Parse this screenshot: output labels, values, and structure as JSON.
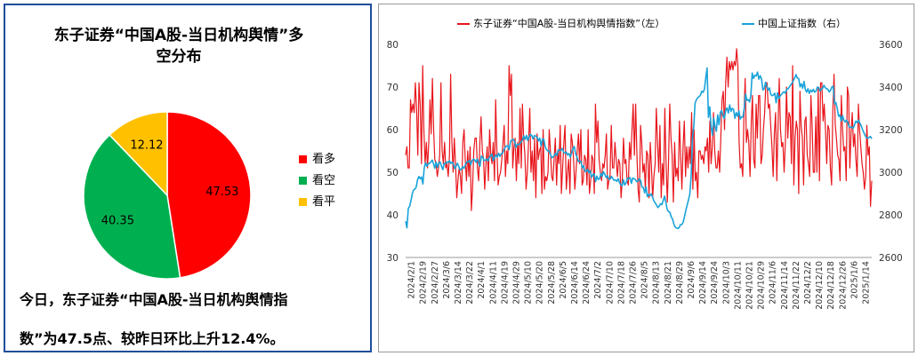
{
  "pie_panel": {
    "title_line1": "东子证券“中国A股-当日机构舆情”多",
    "title_line2": "空分布",
    "caption_line1": "今日，东子证券“中国A股-当日机构舆情指",
    "caption_line2": "数”为47.5点、较昨日环比上升12.4%。"
  },
  "chart_data": [
    {
      "type": "pie",
      "title": "东子证券“中国A股-当日机构舆情”多空分布",
      "slices": [
        {
          "label": "看多",
          "value": 47.53,
          "color": "#ff0000"
        },
        {
          "label": "看空",
          "value": 40.35,
          "color": "#00b050"
        },
        {
          "label": "看平",
          "value": 12.12,
          "color": "#ffc000"
        }
      ],
      "legend_position": "right"
    },
    {
      "type": "line",
      "series": [
        {
          "name": "东子证券“中国A股-当日机构舆情指数”（左）",
          "axis": "left",
          "color": "#e8161c",
          "values": [
            54,
            56,
            51,
            51,
            67,
            64,
            66,
            64,
            71,
            65,
            54,
            71,
            66,
            52,
            75,
            60,
            52,
            57,
            51,
            57,
            67,
            59,
            72,
            60,
            53,
            52,
            49,
            51,
            54,
            71,
            55,
            52,
            57,
            51,
            52,
            49,
            54,
            73,
            57,
            50,
            58,
            52,
            44,
            48,
            51,
            49,
            45,
            57,
            60,
            53,
            48,
            55,
            49,
            56,
            41,
            46,
            55,
            58,
            58,
            51,
            48,
            57,
            63,
            55,
            53,
            46,
            52,
            56,
            48,
            60,
            54,
            52,
            57,
            48,
            67,
            55,
            47,
            49,
            50,
            53,
            57,
            61,
            49,
            55,
            52,
            75,
            68,
            73,
            51,
            56,
            58,
            48,
            57,
            52,
            65,
            51,
            66,
            58,
            54,
            46,
            50,
            57,
            65,
            50,
            55,
            48,
            58,
            44,
            59,
            53,
            55,
            56,
            45,
            60,
            46,
            49,
            48,
            50,
            60,
            55,
            49,
            48,
            53,
            58,
            47,
            55,
            52,
            61,
            45,
            51,
            57,
            61,
            46,
            50,
            53,
            45,
            59,
            57,
            53,
            46,
            50,
            55,
            59,
            52,
            60,
            47,
            48,
            54,
            53,
            47,
            60,
            45,
            48,
            54,
            53,
            45,
            66,
            57,
            62,
            53,
            50,
            48,
            52,
            51,
            54,
            59,
            46,
            48,
            49,
            61,
            51,
            51,
            57,
            53,
            49,
            53,
            52,
            44,
            48,
            58,
            52,
            53,
            48,
            47,
            57,
            53,
            60,
            66,
            54,
            66,
            55,
            46,
            43,
            61,
            57,
            50,
            52,
            46,
            55,
            54,
            44,
            57,
            51,
            44,
            49,
            52,
            65,
            57,
            50,
            61,
            44,
            52,
            47,
            65,
            52,
            43,
            52,
            66,
            58,
            54,
            43,
            57,
            49,
            51,
            48,
            62,
            54,
            46,
            56,
            62,
            49,
            56,
            51,
            56,
            52,
            64,
            46,
            60,
            48,
            50,
            44,
            55,
            55,
            53,
            54,
            52,
            56,
            55,
            58,
            50,
            62,
            52,
            56,
            64,
            55,
            51,
            51,
            55,
            50,
            58,
            67,
            69,
            60,
            71,
            77,
            70,
            76,
            74,
            76,
            74,
            76,
            75,
            79,
            75,
            57,
            51,
            52,
            49,
            63,
            72,
            57,
            60,
            57,
            49,
            62,
            68,
            53,
            51,
            66,
            58,
            68,
            68,
            52,
            54,
            60,
            64,
            71,
            71,
            65,
            66,
            61,
            56,
            49,
            59,
            64,
            48,
            61,
            72,
            60,
            56,
            57,
            50,
            57,
            70,
            58,
            64,
            63,
            52,
            75,
            47,
            58,
            62,
            60,
            45,
            69,
            61,
            58,
            47,
            62,
            63,
            54,
            52,
            49,
            68,
            61,
            50,
            50,
            63,
            50,
            70,
            48,
            71,
            71,
            62,
            66,
            60,
            52,
            61,
            60,
            51,
            47,
            64,
            73,
            61,
            58,
            54,
            53,
            48,
            68,
            60,
            55,
            56,
            48,
            70,
            68,
            51,
            59,
            64,
            56,
            59,
            53,
            49,
            66,
            60,
            56,
            52,
            50,
            46,
            49,
            61,
            54,
            56,
            42,
            48
          ]
        },
        {
          "name": "中国上证指数（右）",
          "axis": "right",
          "color": "#1aa3d9",
          "values": [
            2770,
            2739,
            2830,
            2840,
            2866,
            2900,
            2917,
            2921,
            2931,
            2965,
            2980,
            2969,
            2978,
            2945,
            3020,
            3044,
            3028,
            3040,
            3041,
            3049,
            3057,
            3039,
            3019,
            3048,
            3023,
            3043,
            3048,
            3028,
            3012,
            3042,
            3039,
            3048,
            3046,
            3054,
            3041,
            3047,
            3040,
            3017,
            3028,
            3042,
            3028,
            3011,
            3015,
            3026,
            3018,
            3035,
            3048,
            3049,
            3056,
            3035,
            3054,
            3061,
            3058,
            3047,
            3063,
            3042,
            3028,
            3076,
            3071,
            3054,
            3057,
            3062,
            3053,
            3069,
            3078,
            3085,
            3054,
            3069,
            3081,
            3071,
            3089,
            3074,
            3087,
            3089,
            3105,
            3117,
            3123,
            3125,
            3106,
            3146,
            3151,
            3154,
            3146,
            3116,
            3131,
            3130,
            3133,
            3143,
            3151,
            3171,
            3154,
            3173,
            3149,
            3167,
            3178,
            3173,
            3156,
            3172,
            3169,
            3164,
            3147,
            3160,
            3123,
            3156,
            3155,
            3121,
            3107,
            3101,
            3100,
            3085,
            3068,
            3072,
            3078,
            3090,
            3079,
            3106,
            3102,
            3103,
            3112,
            3093,
            3090,
            3095,
            3081,
            3088,
            3070,
            3091,
            3111,
            3121,
            3086,
            3072,
            3050,
            3053,
            3051,
            3020,
            3030,
            3005,
            3003,
            3014,
            2998,
            3007,
            2976,
            2990,
            2992,
            2956,
            2982,
            2966,
            2970,
            2994,
            2981,
            3002,
            2991,
            2975,
            2984,
            2967,
            2968,
            2981,
            2970,
            2962,
            2964,
            2957,
            2970,
            2951,
            2942,
            2936,
            2965,
            2940,
            2950,
            2972,
            2969,
            2975,
            2948,
            2972,
            2971,
            2965,
            2956,
            2958,
            2970,
            2960,
            2930,
            2928,
            2903,
            2931,
            2885,
            2897,
            2890,
            2899,
            2881,
            2865,
            2855,
            2844,
            2834,
            2841,
            2852,
            2848,
            2868,
            2888,
            2857,
            2825,
            2815,
            2812,
            2790,
            2780,
            2756,
            2742,
            2738,
            2736,
            2740,
            2754,
            2754,
            2765,
            2792,
            2821,
            2846,
            2870,
            2898,
            2987,
            3161,
            3220,
            3325,
            3340,
            3350,
            3355,
            3361,
            3380,
            3375,
            3390,
            3442,
            3489,
            3258,
            3307,
            3212,
            3174,
            3255,
            3217,
            3192,
            3269,
            3223,
            3281,
            3290,
            3265,
            3252,
            3290,
            3302,
            3278,
            3316,
            3285,
            3300,
            3294,
            3253,
            3280,
            3263,
            3288,
            3249,
            3260,
            3259,
            3301,
            3367,
            3337,
            3341,
            3330,
            3361,
            3466,
            3440,
            3455,
            3452,
            3470,
            3437,
            3453,
            3438,
            3386,
            3392,
            3422,
            3402,
            3385,
            3396,
            3365,
            3359,
            3363,
            3371,
            3326,
            3373,
            3345,
            3358,
            3365,
            3373,
            3378,
            3371,
            3390,
            3391,
            3400,
            3410,
            3418,
            3431,
            3443,
            3458,
            3442,
            3439,
            3401,
            3415,
            3394,
            3426,
            3388,
            3376,
            3392,
            3370,
            3386,
            3377,
            3389,
            3376,
            3380,
            3399,
            3398,
            3381,
            3391,
            3394,
            3408,
            3397,
            3392,
            3389,
            3377,
            3384,
            3400,
            3404,
            3321,
            3327,
            3300,
            3263,
            3269,
            3240,
            3266,
            3246,
            3236,
            3244,
            3235,
            3213,
            3211,
            3212,
            3206,
            3222,
            3240,
            3233,
            3245,
            3231,
            3219,
            3202,
            3187,
            3173,
            3163,
            3160,
            3163,
            3168,
            3157
          ]
        }
      ],
      "yleft": {
        "lim": [
          30,
          80
        ],
        "ticks": [
          30,
          40,
          50,
          60,
          70,
          80
        ]
      },
      "yright": {
        "lim": [
          2600,
          3600
        ],
        "ticks": [
          2600,
          2800,
          3000,
          3200,
          3400,
          3600
        ]
      },
      "x_tick_labels": [
        "2024/2/1",
        "2024/2/19",
        "2024/2/27",
        "2024/3/6",
        "2024/3/14",
        "2024/3/22",
        "2024/4/1",
        "2024/4/11",
        "2024/4/19",
        "2024/4/29",
        "2024/5/10",
        "2024/5/20",
        "2024/5/28",
        "2024/6/5",
        "2024/6/14",
        "2024/6/24",
        "2024/7/2",
        "2024/7/10",
        "2024/7/18",
        "2024/7/26",
        "2024/8/5",
        "2024/8/13",
        "2024/8/21",
        "2024/8/29",
        "2024/9/6",
        "2024/9/14",
        "2024/9/24",
        "2024/10/3",
        "2024/10/11",
        "2024/10/21",
        "2024/10/29",
        "2024/11/6",
        "2024/11/14",
        "2024/11/22",
        "2024/12/2",
        "2024/12/10",
        "2024/12/18",
        "2024/12/26",
        "2025/1/6",
        "2025/1/14"
      ],
      "grid": false,
      "legend_position": "top"
    }
  ]
}
